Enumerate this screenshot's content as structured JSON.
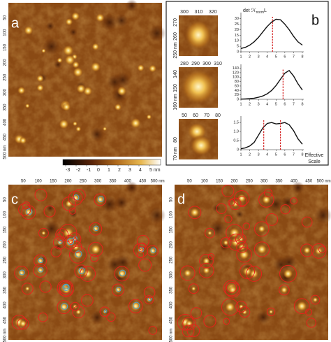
{
  "panel_labels": [
    "a",
    "b",
    "c",
    "d"
  ],
  "image_ticks": [
    "50",
    "100",
    "150",
    "200",
    "250",
    "300",
    "350",
    "400",
    "450",
    "500 nm"
  ],
  "colorbar_ticks": [
    "-3",
    "-2",
    "-1",
    "0",
    "1",
    "2",
    "3",
    "4",
    "5 nm"
  ],
  "thumbnails": [
    {
      "top": [
        "300",
        "310",
        "320"
      ],
      "left": [
        "250 nm",
        "260",
        "270"
      ]
    },
    {
      "top": [
        "280",
        "290",
        "300",
        "310"
      ],
      "left": [
        "160 nm",
        "150",
        "140"
      ]
    },
    {
      "top": [
        "50",
        "60",
        "70",
        "80"
      ],
      "left": [
        "70 nm",
        "80"
      ]
    }
  ],
  "plot_title": {
    "main": "det ℋ",
    "sub": "norm",
    "end": "L"
  },
  "x_label": [
    "Effective",
    "Scale"
  ],
  "plots": [
    {
      "xlim": [
        1,
        8
      ],
      "xticks": [
        1,
        2,
        3,
        4,
        5,
        6,
        7,
        8
      ],
      "ylim": [
        0,
        33
      ],
      "yticks": [
        0,
        5,
        10,
        15,
        20,
        25,
        30
      ],
      "x": [
        1,
        1.5,
        2,
        2.5,
        3,
        3.5,
        4,
        4.5,
        5,
        5.5,
        6,
        6.5,
        7,
        7.5,
        8
      ],
      "values": [
        3,
        4,
        6,
        9,
        13,
        18,
        23,
        27,
        29.5,
        29,
        25,
        20,
        14,
        9,
        6
      ],
      "markers": [
        4.6
      ]
    },
    {
      "xlim": [
        1,
        8
      ],
      "xticks": [
        1,
        2,
        3,
        4,
        5,
        6,
        7,
        8
      ],
      "ylim": [
        0,
        145
      ],
      "yticks": [
        0,
        20,
        40,
        60,
        80,
        100,
        120,
        140
      ],
      "x": [
        1,
        1.5,
        2,
        2.5,
        3,
        3.5,
        4,
        4.5,
        5,
        5.5,
        6,
        6.5,
        7,
        7.5,
        8
      ],
      "values": [
        1,
        2,
        3,
        5,
        9,
        15,
        25,
        40,
        62,
        90,
        118,
        130,
        105,
        70,
        42
      ],
      "markers": [
        5.8
      ]
    },
    {
      "xlim": [
        1,
        8
      ],
      "xticks": [
        1,
        2,
        3,
        4,
        5,
        6,
        7,
        8
      ],
      "ylim": [
        0,
        1.7
      ],
      "yticks": [
        0,
        0.5,
        {
          "value": 1,
          "label": "1.0"
        },
        1.5
      ],
      "x": [
        1,
        1.5,
        2,
        2.5,
        3,
        3.5,
        4,
        4.5,
        5,
        5.5,
        6,
        6.5,
        7,
        7.5,
        8
      ],
      "values": [
        0.05,
        0.1,
        0.2,
        0.4,
        0.8,
        1.2,
        1.45,
        1.5,
        1.42,
        1.45,
        1.5,
        1.38,
        1.05,
        0.6,
        0.3
      ],
      "markers": [
        3.6,
        5.5
      ]
    }
  ]
}
